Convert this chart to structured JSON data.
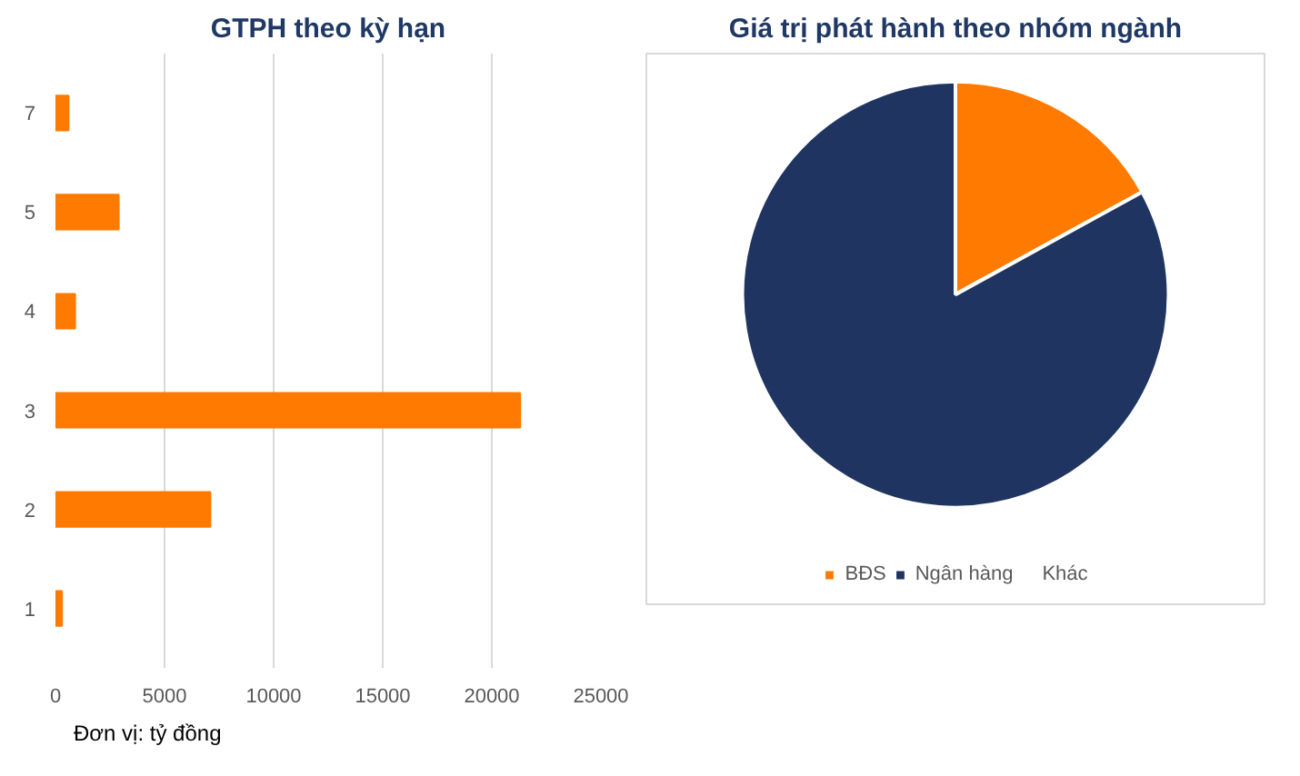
{
  "chart_data": [
    {
      "type": "bar",
      "orientation": "horizontal",
      "title": "GTPH theo kỳ hạn",
      "categories": [
        "7",
        "5",
        "4",
        "3",
        "2",
        "1"
      ],
      "values": [
        600,
        2900,
        900,
        21300,
        7100,
        300
      ],
      "color": "#ff7a00",
      "xlim": [
        0,
        25000
      ],
      "xticks": [
        0,
        5000,
        10000,
        15000,
        20000,
        25000
      ],
      "grid": "x",
      "legend": false,
      "annotations": [
        "Đơn vị: tỷ đồng"
      ]
    },
    {
      "type": "pie",
      "title": "Giá trị phát hành theo nhóm ngành",
      "categories": [
        "BĐS",
        "Ngân hàng",
        "Khác"
      ],
      "values": [
        17,
        83,
        0
      ],
      "colors": [
        "#ff7a00",
        "#203461",
        "#a5a5a5"
      ],
      "legend": "bottom"
    }
  ]
}
